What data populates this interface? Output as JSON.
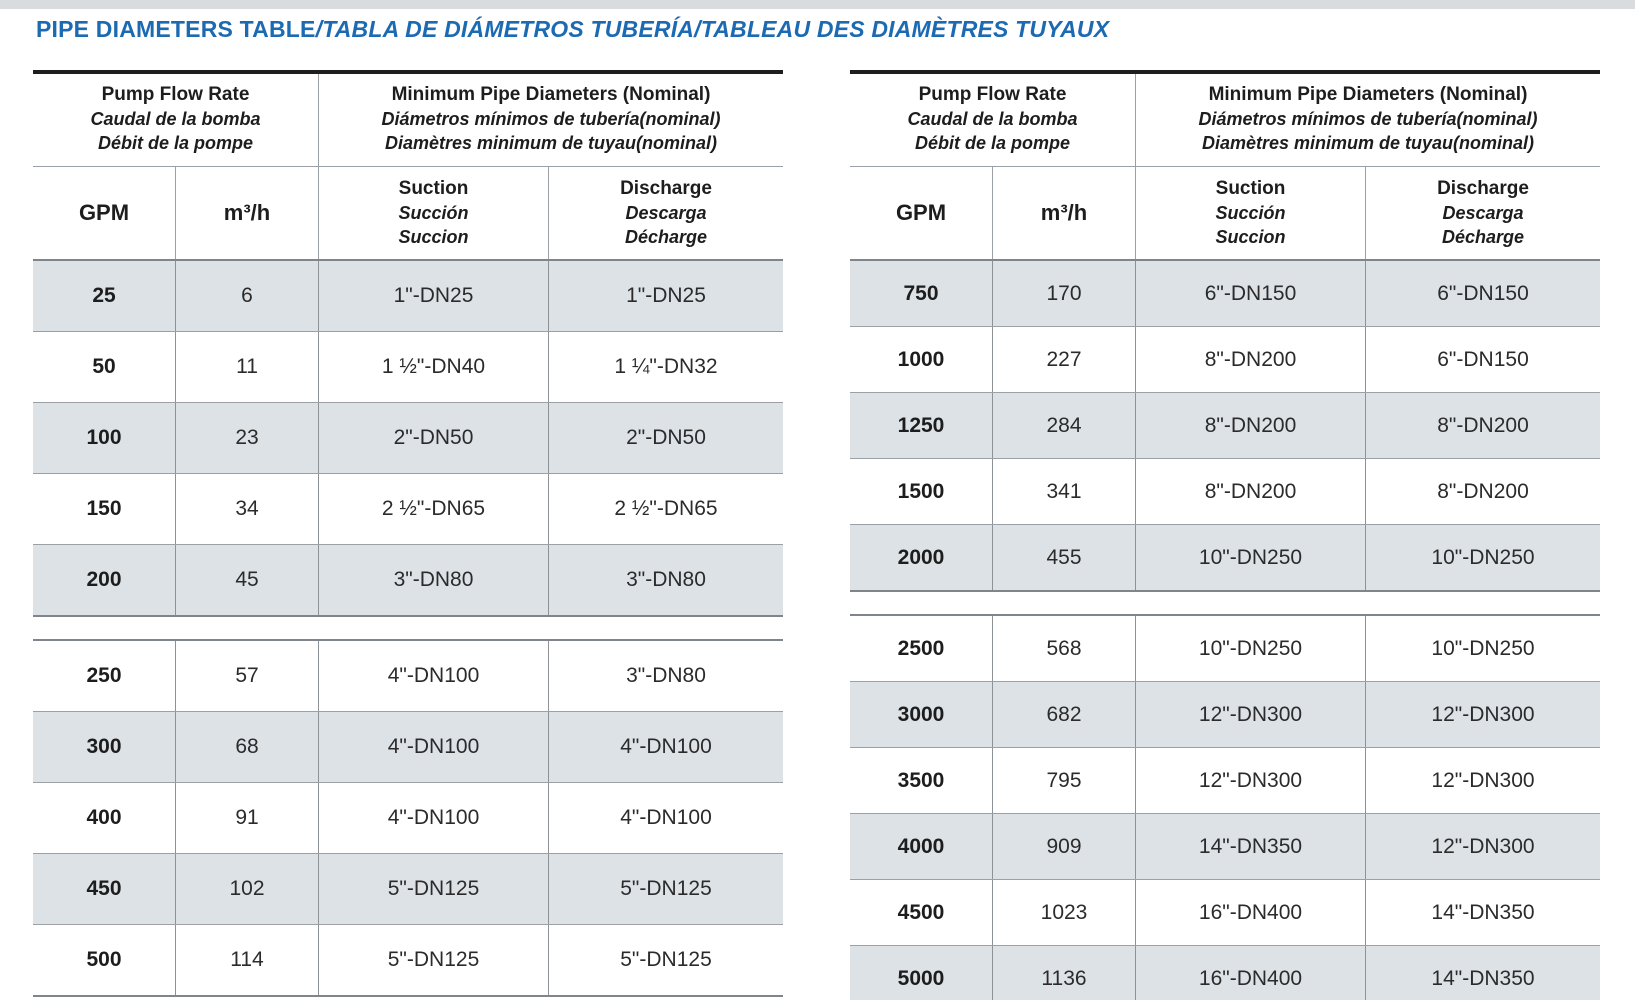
{
  "page": {
    "title_main": "PIPE DIAMETERS TABLE",
    "title_rest": "/TABLA DE DIÁMETROS TUBERÍA/TABLEAU DES DIAMÈTRES TUYAUX"
  },
  "colors": {
    "title_blue": "#1c6ab2",
    "row_shade": "#dde2e6",
    "grid_line": "#9aa0a5",
    "heavy_line": "#1e1e1e"
  },
  "header": {
    "flow_lines": [
      "Pump Flow Rate",
      "Caudal de la bomba",
      "Débit de la pompe"
    ],
    "diam_lines": [
      "Minimum Pipe Diameters (Nominal)",
      "Diámetros mínimos de tubería(nominal)",
      "Diamètres minimum de tuyau(nominal)"
    ],
    "col_gpm": "GPM",
    "col_m3h": "m³/h",
    "col_suction_lines": [
      "Suction",
      "Succión",
      "Succion"
    ],
    "col_discharge_lines": [
      "Discharge",
      "Descarga",
      "Décharge"
    ]
  },
  "tables": [
    {
      "id": "left",
      "sections": [
        {
          "shade_even": true,
          "rows": [
            [
              "25",
              "6",
              "1\"-DN25",
              "1\"-DN25"
            ],
            [
              "50",
              "11",
              "1 ½\"-DN40",
              "1 ¼\"-DN32"
            ],
            [
              "100",
              "23",
              "2\"-DN50",
              "2\"-DN50"
            ],
            [
              "150",
              "34",
              "2 ½\"-DN65",
              "2 ½\"-DN65"
            ],
            [
              "200",
              "45",
              "3\"-DN80",
              "3\"-DN80"
            ]
          ]
        },
        {
          "shade_even": false,
          "rows": [
            [
              "250",
              "57",
              "4\"-DN100",
              "3\"-DN80"
            ],
            [
              "300",
              "68",
              "4\"-DN100",
              "4\"-DN100"
            ],
            [
              "400",
              "91",
              "4\"-DN100",
              "4\"-DN100"
            ],
            [
              "450",
              "102",
              "5\"-DN125",
              "5\"-DN125"
            ],
            [
              "500",
              "114",
              "5\"-DN125",
              "5\"-DN125"
            ]
          ]
        }
      ]
    },
    {
      "id": "right",
      "sections": [
        {
          "shade_even": true,
          "rows": [
            [
              "750",
              "170",
              "6\"-DN150",
              "6\"-DN150"
            ],
            [
              "1000",
              "227",
              "8\"-DN200",
              "6\"-DN150"
            ],
            [
              "1250",
              "284",
              "8\"-DN200",
              "8\"-DN200"
            ],
            [
              "1500",
              "341",
              "8\"-DN200",
              "8\"-DN200"
            ],
            [
              "2000",
              "455",
              "10\"-DN250",
              "10\"-DN250"
            ]
          ]
        },
        {
          "shade_even": false,
          "rows": [
            [
              "2500",
              "568",
              "10\"-DN250",
              "10\"-DN250"
            ],
            [
              "3000",
              "682",
              "12\"-DN300",
              "12\"-DN300"
            ],
            [
              "3500",
              "795",
              "12\"-DN300",
              "12\"-DN300"
            ],
            [
              "4000",
              "909",
              "14\"-DN350",
              "12\"-DN300"
            ],
            [
              "4500",
              "1023",
              "16\"-DN400",
              "14\"-DN350"
            ],
            [
              "5000",
              "1136",
              "16\"-DN400",
              "14\"-DN350"
            ]
          ]
        }
      ]
    }
  ]
}
